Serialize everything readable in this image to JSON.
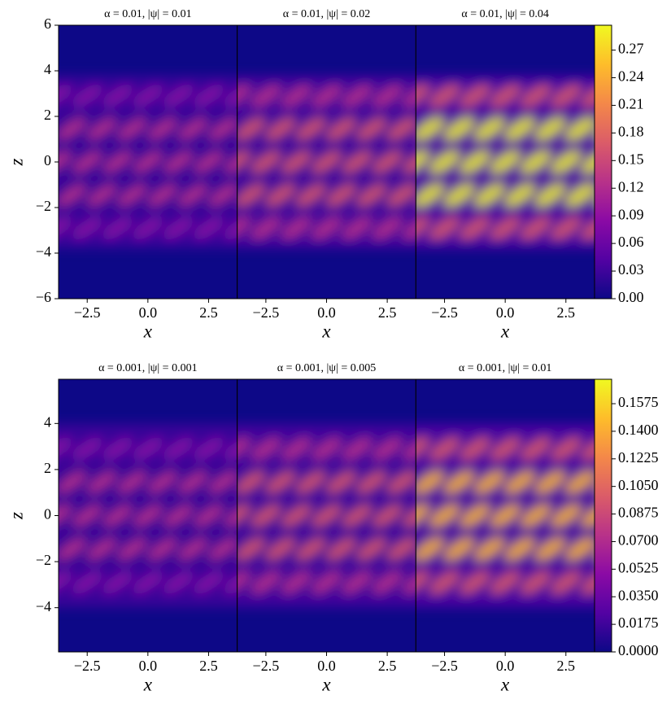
{
  "chart_data": [
    {
      "type": "heatmap",
      "colormap": "plasma",
      "panels": [
        {
          "title": "α = 0.01, |ψ| = 0.01"
        },
        {
          "title": "α = 0.01, |ψ| = 0.02"
        },
        {
          "title": "α = 0.01, |ψ| = 0.04"
        }
      ],
      "xlabel": "x",
      "ylabel": "z",
      "xlim": [
        -3.68,
        3.68
      ],
      "xticks": [
        {
          "value": -2.5,
          "label": "−2.5"
        },
        {
          "value": 0,
          "label": "0.0"
        },
        2.5
      ],
      "ylim": [
        -6,
        6
      ],
      "yticks": [
        {
          "value": -6,
          "label": "−6"
        },
        {
          "value": -4,
          "label": "−4"
        },
        {
          "value": -2,
          "label": "−2"
        },
        0,
        2,
        4,
        6
      ],
      "clim": [
        0,
        0.297
      ],
      "cticks": [
        {
          "value": 0,
          "label": "0.00"
        },
        0.03,
        0.06,
        0.09,
        0.12,
        0.15,
        0.18,
        0.21,
        0.24,
        0.27
      ]
    },
    {
      "type": "heatmap",
      "colormap": "plasma",
      "panels": [
        {
          "title": "α = 0.001, |ψ| = 0.001"
        },
        {
          "title": "α = 0.001, |ψ| = 0.005"
        },
        {
          "title": "α = 0.001, |ψ| = 0.01"
        }
      ],
      "xlabel": "x",
      "ylabel": "z",
      "xlim": [
        -3.68,
        3.68
      ],
      "xticks": [
        {
          "value": -2.5,
          "label": "−2.5"
        },
        {
          "value": 0,
          "label": "0.0"
        },
        2.5
      ],
      "ylim": [
        -5.92,
        5.92
      ],
      "yticks": [
        {
          "value": -4,
          "label": "−4"
        },
        {
          "value": -2,
          "label": "−2"
        },
        0,
        2,
        4
      ],
      "clim": [
        0,
        0.173
      ],
      "cticks": [
        {
          "value": 0,
          "label": "0.0000"
        },
        {
          "value": 0.0175,
          "label": "0.0175"
        },
        {
          "value": 0.035,
          "label": "0.0350"
        },
        {
          "value": 0.0525,
          "label": "0.0525"
        },
        {
          "value": 0.07,
          "label": "0.0700"
        },
        {
          "value": 0.0875,
          "label": "0.0875"
        },
        {
          "value": 0.105,
          "label": "0.1050"
        },
        {
          "value": 0.1225,
          "label": "0.1225"
        },
        {
          "value": 0.14,
          "label": "0.1400"
        },
        {
          "value": 0.1575,
          "label": "0.1575"
        }
      ]
    }
  ]
}
